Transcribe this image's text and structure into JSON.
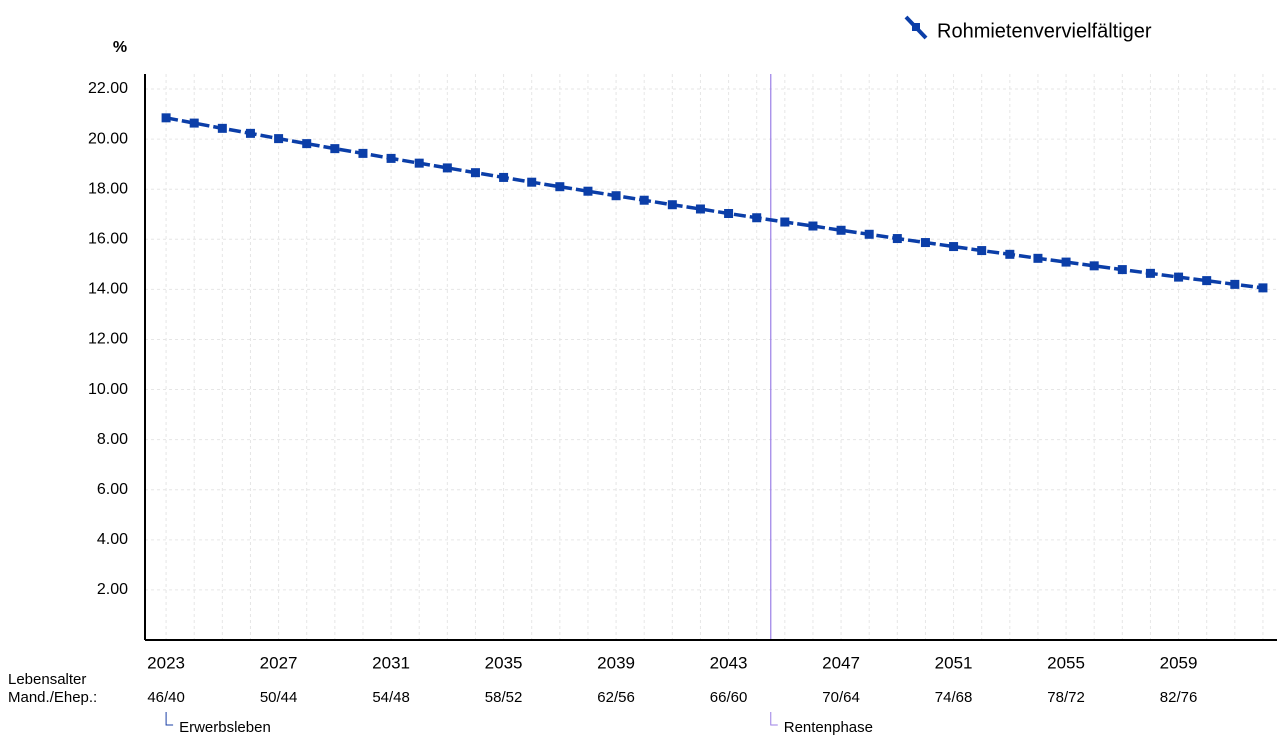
{
  "chart_data": {
    "type": "line",
    "y_unit": "%",
    "x": [
      2023,
      2024,
      2025,
      2026,
      2027,
      2028,
      2029,
      2030,
      2031,
      2032,
      2033,
      2034,
      2035,
      2036,
      2037,
      2038,
      2039,
      2040,
      2041,
      2042,
      2043,
      2044,
      2045,
      2046,
      2047,
      2048,
      2049,
      2050,
      2051,
      2052,
      2053,
      2054,
      2055,
      2056,
      2057,
      2058,
      2059,
      2060,
      2061,
      2062
    ],
    "series": [
      {
        "name": "Rohmietenvervielfältiger",
        "color": "#0b3ea8",
        "values": [
          20.85,
          20.64,
          20.43,
          20.23,
          20.02,
          19.82,
          19.62,
          19.43,
          19.23,
          19.04,
          18.85,
          18.66,
          18.47,
          18.28,
          18.1,
          17.92,
          17.74,
          17.56,
          17.38,
          17.21,
          17.03,
          16.86,
          16.69,
          16.53,
          16.36,
          16.2,
          16.03,
          15.87,
          15.71,
          15.55,
          15.4,
          15.24,
          15.09,
          14.94,
          14.79,
          14.64,
          14.49,
          14.35,
          14.2,
          14.06
        ]
      }
    ],
    "xlim": [
      2022.25,
      2062.5
    ],
    "xticks": [
      2023,
      2027,
      2031,
      2035,
      2039,
      2043,
      2047,
      2051,
      2055,
      2059
    ],
    "age_row_label": [
      "Lebensalter",
      "Mand./Ehep.:"
    ],
    "age_labels": [
      "46/40",
      "50/44",
      "54/48",
      "58/52",
      "62/56",
      "66/60",
      "70/64",
      "74/68",
      "78/72",
      "82/76"
    ],
    "phases": [
      {
        "label": "Erwerbsleben",
        "start": 2023,
        "color": "#1a3fa6"
      },
      {
        "label": "Rentenphase",
        "start": 2044.5,
        "color": "#9b7fe6"
      }
    ],
    "ylim": [
      0,
      22.6
    ],
    "yticks": [
      {
        "value": 2,
        "label": "2.00"
      },
      {
        "value": 4,
        "label": "4.00"
      },
      {
        "value": 6,
        "label": "6.00"
      },
      {
        "value": 8,
        "label": "8.00"
      },
      {
        "value": 10,
        "label": "10.00"
      },
      {
        "value": 12,
        "label": "12.00"
      },
      {
        "value": 14,
        "label": "14.00"
      },
      {
        "value": 16,
        "label": "16.00"
      },
      {
        "value": 18,
        "label": "18.00"
      },
      {
        "value": 20,
        "label": "20.00"
      },
      {
        "value": 22,
        "label": "22.00"
      }
    ],
    "grid": true
  }
}
